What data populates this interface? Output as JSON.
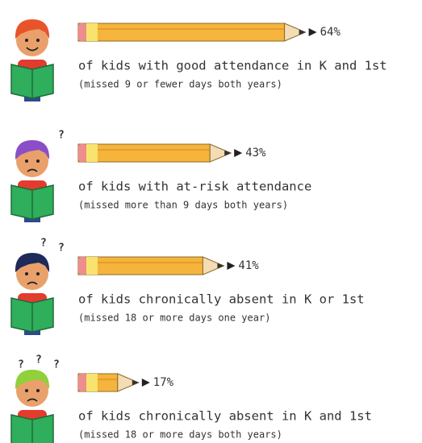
{
  "chart_data": {
    "type": "bar",
    "categories": [
      "of kids with good attendance in K and 1st",
      "of kids with at-risk attendance",
      "of kids chronically absent in K or 1st",
      "of kids chronically absent in K and 1st"
    ],
    "notes": [
      "(missed 9 or fewer days both years)",
      "(missed more than 9 days both years)",
      "(missed 18 or more days one year)",
      "(missed 18 or more days both years)"
    ],
    "values": [
      64,
      43,
      41,
      17
    ],
    "value_labels": [
      "64%",
      "43%",
      "41%",
      "17%"
    ],
    "color": "#f5b43c"
  }
}
